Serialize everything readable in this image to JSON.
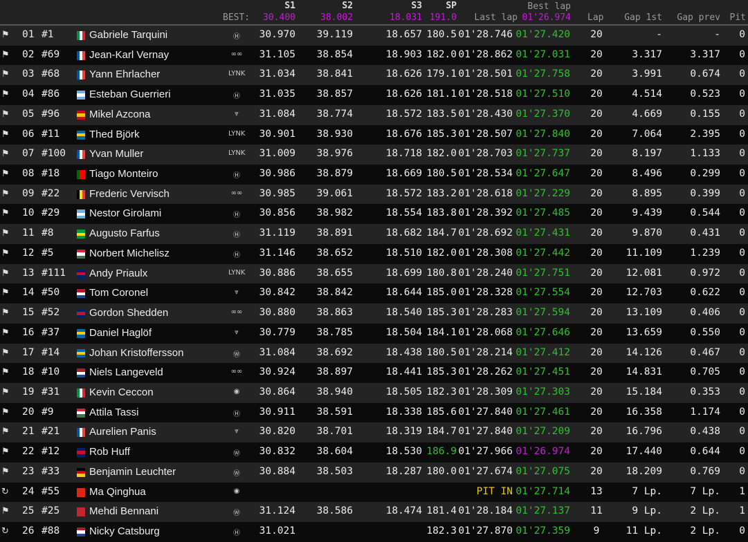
{
  "header": {
    "s1": "S1",
    "s2": "S2",
    "s3": "S3",
    "sp": "SP",
    "best_label": "BEST:",
    "best_s1": "30.400",
    "best_s2": "38.002",
    "best_s3": "18.031",
    "best_sp": "191.0",
    "last_lap": "Last lap",
    "best_lap": "Best lap",
    "best_lap_value": "01'26.974",
    "lap": "Lap",
    "gap1": "Gap 1st",
    "gapprev": "Gap prev",
    "pit": "Pit"
  },
  "colors": {
    "purple": "#c21ed2",
    "green": "#2fc02f",
    "yellow": "#e6c800"
  },
  "rows": [
    {
      "status": "checkered-flag",
      "pos": "01",
      "num": "#1",
      "flag": "ITA",
      "name": "Gabriele Tarquini",
      "brand": "hyundai",
      "s1": "30.970",
      "s2": "39.119",
      "s3": "18.657",
      "sp": "180.5",
      "last": "01'28.746",
      "best": "01'27.420",
      "lap": "20",
      "gap1": "-",
      "gapprev": "-",
      "pit": "0"
    },
    {
      "status": "checkered-flag",
      "pos": "02",
      "num": "#69",
      "flag": "FRA",
      "name": "Jean-Karl Vernay",
      "brand": "audi",
      "s1": "31.105",
      "s2": "38.854",
      "s3": "18.903",
      "sp": "182.0",
      "last": "01'28.862",
      "best": "01'27.031",
      "lap": "20",
      "gap1": "3.317",
      "gapprev": "3.317",
      "pit": "0"
    },
    {
      "status": "checkered-flag",
      "pos": "03",
      "num": "#68",
      "flag": "FRA",
      "name": "Yann Ehrlacher",
      "brand": "lynkco",
      "s1": "31.034",
      "s2": "38.841",
      "s3": "18.626",
      "sp": "179.1",
      "last": "01'28.501",
      "best": "01'27.758",
      "lap": "20",
      "gap1": "3.991",
      "gapprev": "0.674",
      "pit": "0"
    },
    {
      "status": "checkered-flag",
      "pos": "04",
      "num": "#86",
      "flag": "ARG",
      "name": "Esteban Guerrieri",
      "brand": "honda",
      "s1": "31.035",
      "s2": "38.857",
      "s3": "18.626",
      "sp": "181.1",
      "last": "01'28.518",
      "best": "01'27.510",
      "lap": "20",
      "gap1": "4.514",
      "gapprev": "0.523",
      "pit": "0"
    },
    {
      "status": "checkered-flag",
      "pos": "05",
      "num": "#96",
      "flag": "ESP",
      "name": "Mikel Azcona",
      "brand": "cupra",
      "s1": "31.084",
      "s2": "38.774",
      "s3": "18.572",
      "sp": "183.5",
      "last": "01'28.430",
      "best": "01'27.370",
      "lap": "20",
      "gap1": "4.669",
      "gapprev": "0.155",
      "pit": "0"
    },
    {
      "status": "checkered-flag",
      "pos": "06",
      "num": "#11",
      "flag": "SWE",
      "name": "Thed Björk",
      "brand": "lynkco",
      "s1": "30.901",
      "s2": "38.930",
      "s3": "18.676",
      "sp": "185.3",
      "last": "01'28.507",
      "best": "01'27.840",
      "lap": "20",
      "gap1": "7.064",
      "gapprev": "2.395",
      "pit": "0"
    },
    {
      "status": "checkered-flag",
      "pos": "07",
      "num": "#100",
      "flag": "FRA",
      "name": "Yvan Muller",
      "brand": "lynkco",
      "s1": "31.009",
      "s2": "38.976",
      "s3": "18.718",
      "sp": "182.0",
      "last": "01'28.703",
      "best": "01'27.737",
      "lap": "20",
      "gap1": "8.197",
      "gapprev": "1.133",
      "pit": "0"
    },
    {
      "status": "checkered-flag",
      "pos": "08",
      "num": "#18",
      "flag": "POR",
      "name": "Tiago Monteiro",
      "brand": "honda",
      "s1": "30.986",
      "s2": "38.879",
      "s3": "18.669",
      "sp": "180.5",
      "last": "01'28.534",
      "best": "01'27.647",
      "lap": "20",
      "gap1": "8.496",
      "gapprev": "0.299",
      "pit": "0"
    },
    {
      "status": "checkered-flag",
      "pos": "09",
      "num": "#22",
      "flag": "BEL",
      "name": "Frederic Vervisch",
      "brand": "audi",
      "s1": "30.985",
      "s2": "39.061",
      "s3": "18.572",
      "sp": "183.2",
      "last": "01'28.618",
      "best": "01'27.229",
      "lap": "20",
      "gap1": "8.895",
      "gapprev": "0.399",
      "pit": "0"
    },
    {
      "status": "checkered-flag",
      "pos": "10",
      "num": "#29",
      "flag": "ARG",
      "name": "Nestor Girolami",
      "brand": "honda",
      "s1": "30.856",
      "s2": "38.982",
      "s3": "18.554",
      "sp": "183.8",
      "last": "01'28.392",
      "best": "01'27.485",
      "lap": "20",
      "gap1": "9.439",
      "gapprev": "0.544",
      "pit": "0"
    },
    {
      "status": "checkered-flag",
      "pos": "11",
      "num": "#8",
      "flag": "BRA",
      "name": "Augusto Farfus",
      "brand": "hyundai",
      "s1": "31.119",
      "s2": "38.891",
      "s3": "18.682",
      "sp": "184.7",
      "last": "01'28.692",
      "best": "01'27.431",
      "lap": "20",
      "gap1": "9.870",
      "gapprev": "0.431",
      "pit": "0"
    },
    {
      "status": "checkered-flag",
      "pos": "12",
      "num": "#5",
      "flag": "HUN",
      "name": "Norbert Michelisz",
      "brand": "hyundai",
      "s1": "31.146",
      "s2": "38.652",
      "s3": "18.510",
      "sp": "182.0",
      "last": "01'28.308",
      "best": "01'27.442",
      "lap": "20",
      "gap1": "11.109",
      "gapprev": "1.239",
      "pit": "0"
    },
    {
      "status": "checkered-flag",
      "pos": "13",
      "num": "#111",
      "flag": "GBR",
      "name": "Andy Priaulx",
      "brand": "lynkco",
      "s1": "30.886",
      "s2": "38.655",
      "s3": "18.699",
      "sp": "180.8",
      "last": "01'28.240",
      "best": "01'27.751",
      "lap": "20",
      "gap1": "12.081",
      "gapprev": "0.972",
      "pit": "0"
    },
    {
      "status": "checkered-flag",
      "pos": "14",
      "num": "#50",
      "flag": "NED",
      "name": "Tom Coronel",
      "brand": "cupra",
      "s1": "30.842",
      "s2": "38.842",
      "s3": "18.644",
      "sp": "185.0",
      "last": "01'28.328",
      "best": "01'27.554",
      "lap": "20",
      "gap1": "12.703",
      "gapprev": "0.622",
      "pit": "0"
    },
    {
      "status": "checkered-flag",
      "pos": "15",
      "num": "#52",
      "flag": "GBR",
      "name": "Gordon Shedden",
      "brand": "audi",
      "s1": "30.880",
      "s2": "38.863",
      "s3": "18.540",
      "sp": "185.3",
      "last": "01'28.283",
      "best": "01'27.594",
      "lap": "20",
      "gap1": "13.109",
      "gapprev": "0.406",
      "pit": "0"
    },
    {
      "status": "checkered-flag",
      "pos": "16",
      "num": "#37",
      "flag": "SWE",
      "name": "Daniel Haglöf",
      "brand": "cupra",
      "s1": "30.779",
      "s2": "38.785",
      "s3": "18.504",
      "sp": "184.1",
      "last": "01'28.068",
      "best": "01'27.646",
      "lap": "20",
      "gap1": "13.659",
      "gapprev": "0.550",
      "pit": "0"
    },
    {
      "status": "checkered-flag",
      "pos": "17",
      "num": "#14",
      "flag": "SWE",
      "name": "Johan Kristoffersson",
      "brand": "vw",
      "s1": "31.084",
      "s2": "38.692",
      "s3": "18.438",
      "sp": "180.5",
      "last": "01'28.214",
      "best": "01'27.412",
      "lap": "20",
      "gap1": "14.126",
      "gapprev": "0.467",
      "pit": "0"
    },
    {
      "status": "checkered-flag",
      "pos": "18",
      "num": "#10",
      "flag": "NED",
      "name": "Niels Langeveld",
      "brand": "audi",
      "s1": "30.924",
      "s2": "38.897",
      "s3": "18.441",
      "sp": "185.3",
      "last": "01'28.262",
      "best": "01'27.451",
      "lap": "20",
      "gap1": "14.831",
      "gapprev": "0.705",
      "pit": "0"
    },
    {
      "status": "checkered-flag",
      "pos": "19",
      "num": "#31",
      "flag": "ITA",
      "name": "Kevin Ceccon",
      "brand": "alfa",
      "s1": "30.864",
      "s2": "38.940",
      "s3": "18.505",
      "sp": "182.3",
      "last": "01'28.309",
      "best": "01'27.303",
      "lap": "20",
      "gap1": "15.184",
      "gapprev": "0.353",
      "pit": "0"
    },
    {
      "status": "checkered-flag",
      "pos": "20",
      "num": "#9",
      "flag": "HUN",
      "name": "Attila Tassi",
      "brand": "honda",
      "s1": "30.911",
      "s2": "38.591",
      "s3": "18.338",
      "sp": "185.6",
      "last": "01'27.840",
      "best": "01'27.461",
      "lap": "20",
      "gap1": "16.358",
      "gapprev": "1.174",
      "pit": "0"
    },
    {
      "status": "checkered-flag",
      "pos": "21",
      "num": "#21",
      "flag": "FRA",
      "name": "Aurelien Panis",
      "brand": "cupra",
      "s1": "30.820",
      "s2": "38.701",
      "s3": "18.319",
      "sp": "184.7",
      "last": "01'27.840",
      "best": "01'27.209",
      "lap": "20",
      "gap1": "16.796",
      "gapprev": "0.438",
      "pit": "0"
    },
    {
      "status": "checkered-flag",
      "pos": "22",
      "num": "#12",
      "flag": "GBR",
      "name": "Rob Huff",
      "brand": "vw",
      "s1": "30.832",
      "s2": "38.604",
      "s3": "18.530",
      "sp": "186.9",
      "sp_color": "green",
      "last": "01'27.966",
      "best": "01'26.974",
      "best_color": "purple",
      "lap": "20",
      "gap1": "17.440",
      "gapprev": "0.644",
      "pit": "0"
    },
    {
      "status": "checkered-flag",
      "pos": "23",
      "num": "#33",
      "flag": "GER",
      "name": "Benjamin Leuchter",
      "brand": "vw",
      "s1": "30.884",
      "s2": "38.503",
      "s3": "18.287",
      "sp": "180.0",
      "last": "01'27.674",
      "best": "01'27.075",
      "lap": "20",
      "gap1": "18.209",
      "gapprev": "0.769",
      "pit": "0"
    },
    {
      "status": "pit-clock",
      "pos": "24",
      "num": "#55",
      "flag": "CHN",
      "name": "Ma Qinghua",
      "brand": "alfa",
      "s1": "",
      "s2": "",
      "s3": "",
      "sp": "",
      "last": "PIT IN",
      "last_color": "yellow",
      "best": "01'27.714",
      "lap": "13",
      "gap1": "7 Lp.",
      "gapprev": "7 Lp.",
      "pit": "1"
    },
    {
      "status": "checkered-flag",
      "pos": "25",
      "num": "#25",
      "flag": "MAR",
      "name": "Mehdi Bennani",
      "brand": "vw",
      "s1": "31.124",
      "s2": "38.586",
      "s3": "18.474",
      "sp": "181.4",
      "last": "01'28.184",
      "best": "01'27.137",
      "lap": "11",
      "gap1": "9 Lp.",
      "gapprev": "2 Lp.",
      "pit": "1"
    },
    {
      "status": "pit-clock",
      "pos": "26",
      "num": "#88",
      "flag": "NED",
      "name": "Nicky Catsburg",
      "brand": "hyundai",
      "s1": "31.021",
      "s2": "",
      "s3": "",
      "sp": "182.3",
      "last": "01'27.870",
      "best": "01'27.359",
      "lap": "9",
      "gap1": "11 Lp.",
      "gapprev": "2 Lp.",
      "pit": "0"
    }
  ]
}
